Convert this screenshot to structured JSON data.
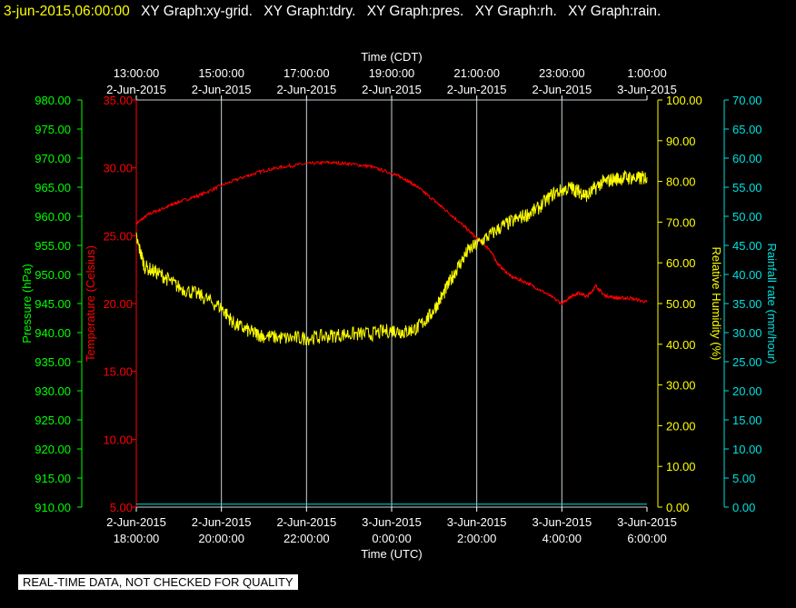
{
  "header": {
    "timestamp": "3-jun-2015,06:00:00",
    "labels": [
      "XY Graph:xy-grid.",
      "XY Graph:tdry.",
      "XY Graph:pres.",
      "XY Graph:rh.",
      "XY Graph:rain."
    ]
  },
  "footer": {
    "notice": "REAL-TIME DATA, NOT CHECKED FOR QUALITY"
  },
  "colors": {
    "background": "#000000",
    "grid": "#c8d2d8",
    "pressure": "#00ff00",
    "temperature": "#ff0000",
    "humidity": "#ffff00",
    "rain": "#00e0e0",
    "text": "#ffffff"
  },
  "chart_data": {
    "type": "line",
    "grid": true,
    "x_top": {
      "title": "Time (CDT)",
      "ticks": [
        [
          "13:00:00",
          "2-Jun-2015"
        ],
        [
          "15:00:00",
          "2-Jun-2015"
        ],
        [
          "17:00:00",
          "2-Jun-2015"
        ],
        [
          "19:00:00",
          "2-Jun-2015"
        ],
        [
          "21:00:00",
          "2-Jun-2015"
        ],
        [
          "23:00:00",
          "2-Jun-2015"
        ],
        [
          "1:00:00",
          "3-Jun-2015"
        ]
      ]
    },
    "x_bottom": {
      "title": "Time (UTC)",
      "range": [
        18,
        30
      ],
      "tick_values": [
        18,
        20,
        22,
        24,
        26,
        28,
        30
      ],
      "ticks": [
        [
          "2-Jun-2015",
          "18:00:00"
        ],
        [
          "2-Jun-2015",
          "20:00:00"
        ],
        [
          "2-Jun-2015",
          "22:00:00"
        ],
        [
          "3-Jun-2015",
          "0:00:00"
        ],
        [
          "3-Jun-2015",
          "2:00:00"
        ],
        [
          "3-Jun-2015",
          "4:00:00"
        ],
        [
          "3-Jun-2015",
          "6:00:00"
        ]
      ]
    },
    "axes": {
      "pressure": {
        "label": "Pressure (hPa)",
        "range": [
          910,
          980
        ],
        "ticks": [
          "910.00",
          "915.00",
          "920.00",
          "925.00",
          "930.00",
          "935.00",
          "940.00",
          "945.00",
          "950.00",
          "955.00",
          "960.00",
          "965.00",
          "970.00",
          "975.00",
          "980.00"
        ]
      },
      "temperature": {
        "label": "Temperature (Celsius)",
        "range": [
          5,
          35
        ],
        "ticks": [
          "5.00",
          "10.00",
          "15.00",
          "20.00",
          "25.00",
          "30.00",
          "35.00"
        ]
      },
      "humidity": {
        "label": "Relative Humidity (%)",
        "range": [
          0,
          100
        ],
        "ticks": [
          "0.00",
          "10.00",
          "20.00",
          "30.00",
          "40.00",
          "50.00",
          "60.00",
          "70.00",
          "80.00",
          "90.00",
          "100.00"
        ]
      },
      "rain": {
        "label": "Rainfall rate (mm/hour)",
        "range": [
          0,
          70
        ],
        "ticks": [
          "0.00",
          "5.00",
          "10.00",
          "15.00",
          "20.00",
          "25.00",
          "30.00",
          "35.00",
          "40.00",
          "45.00",
          "50.00",
          "55.00",
          "60.00",
          "65.00",
          "70.00"
        ]
      }
    },
    "series": [
      {
        "axis": "temperature",
        "color": "#ff0000",
        "noise": 0.12,
        "points": [
          [
            18.0,
            25.9
          ],
          [
            18.3,
            26.6
          ],
          [
            18.7,
            27.1
          ],
          [
            19.0,
            27.5
          ],
          [
            19.5,
            28.0
          ],
          [
            20.0,
            28.7
          ],
          [
            20.5,
            29.3
          ],
          [
            21.0,
            29.8
          ],
          [
            21.5,
            30.1
          ],
          [
            22.0,
            30.3
          ],
          [
            22.5,
            30.4
          ],
          [
            23.0,
            30.3
          ],
          [
            23.5,
            30.1
          ],
          [
            24.0,
            29.6
          ],
          [
            24.3,
            29.2
          ],
          [
            24.6,
            28.6
          ],
          [
            25.0,
            27.6
          ],
          [
            25.3,
            26.8
          ],
          [
            25.7,
            25.7
          ],
          [
            26.0,
            24.8
          ],
          [
            26.3,
            24.0
          ],
          [
            26.5,
            22.9
          ],
          [
            26.8,
            22.0
          ],
          [
            27.2,
            21.5
          ],
          [
            27.6,
            20.8
          ],
          [
            28.0,
            20.0
          ],
          [
            28.2,
            20.5
          ],
          [
            28.4,
            20.8
          ],
          [
            28.6,
            20.5
          ],
          [
            28.8,
            21.3
          ],
          [
            29.0,
            20.6
          ],
          [
            29.3,
            20.4
          ],
          [
            29.6,
            20.4
          ],
          [
            30.0,
            20.1
          ]
        ]
      },
      {
        "axis": "humidity",
        "color": "#ffff00",
        "noise": 1.8,
        "points": [
          [
            18.0,
            66.0
          ],
          [
            18.2,
            59.0
          ],
          [
            18.6,
            57.0
          ],
          [
            19.0,
            54.0
          ],
          [
            19.5,
            52.0
          ],
          [
            20.0,
            49.0
          ],
          [
            20.3,
            45.0
          ],
          [
            20.7,
            43.0
          ],
          [
            21.0,
            42.0
          ],
          [
            21.5,
            41.5
          ],
          [
            22.0,
            41.5
          ],
          [
            22.5,
            42.0
          ],
          [
            23.0,
            42.5
          ],
          [
            23.5,
            42.5
          ],
          [
            24.0,
            43.5
          ],
          [
            24.3,
            43.0
          ],
          [
            24.6,
            44.0
          ],
          [
            24.9,
            47.0
          ],
          [
            25.2,
            52.0
          ],
          [
            25.5,
            58.0
          ],
          [
            25.8,
            63.0
          ],
          [
            26.2,
            66.0
          ],
          [
            26.6,
            69.0
          ],
          [
            27.0,
            71.0
          ],
          [
            27.4,
            73.0
          ],
          [
            27.8,
            77.0
          ],
          [
            28.2,
            78.5
          ],
          [
            28.4,
            77.5
          ],
          [
            28.6,
            76.5
          ],
          [
            28.9,
            79.5
          ],
          [
            29.2,
            80.5
          ],
          [
            29.5,
            81.0
          ],
          [
            29.8,
            80.7
          ],
          [
            30.0,
            81.0
          ]
        ]
      },
      {
        "axis": "rain",
        "color": "#00e0e0",
        "noise": 0,
        "points": [
          [
            18.0,
            0.5
          ],
          [
            30.0,
            0.5
          ]
        ]
      }
    ]
  }
}
